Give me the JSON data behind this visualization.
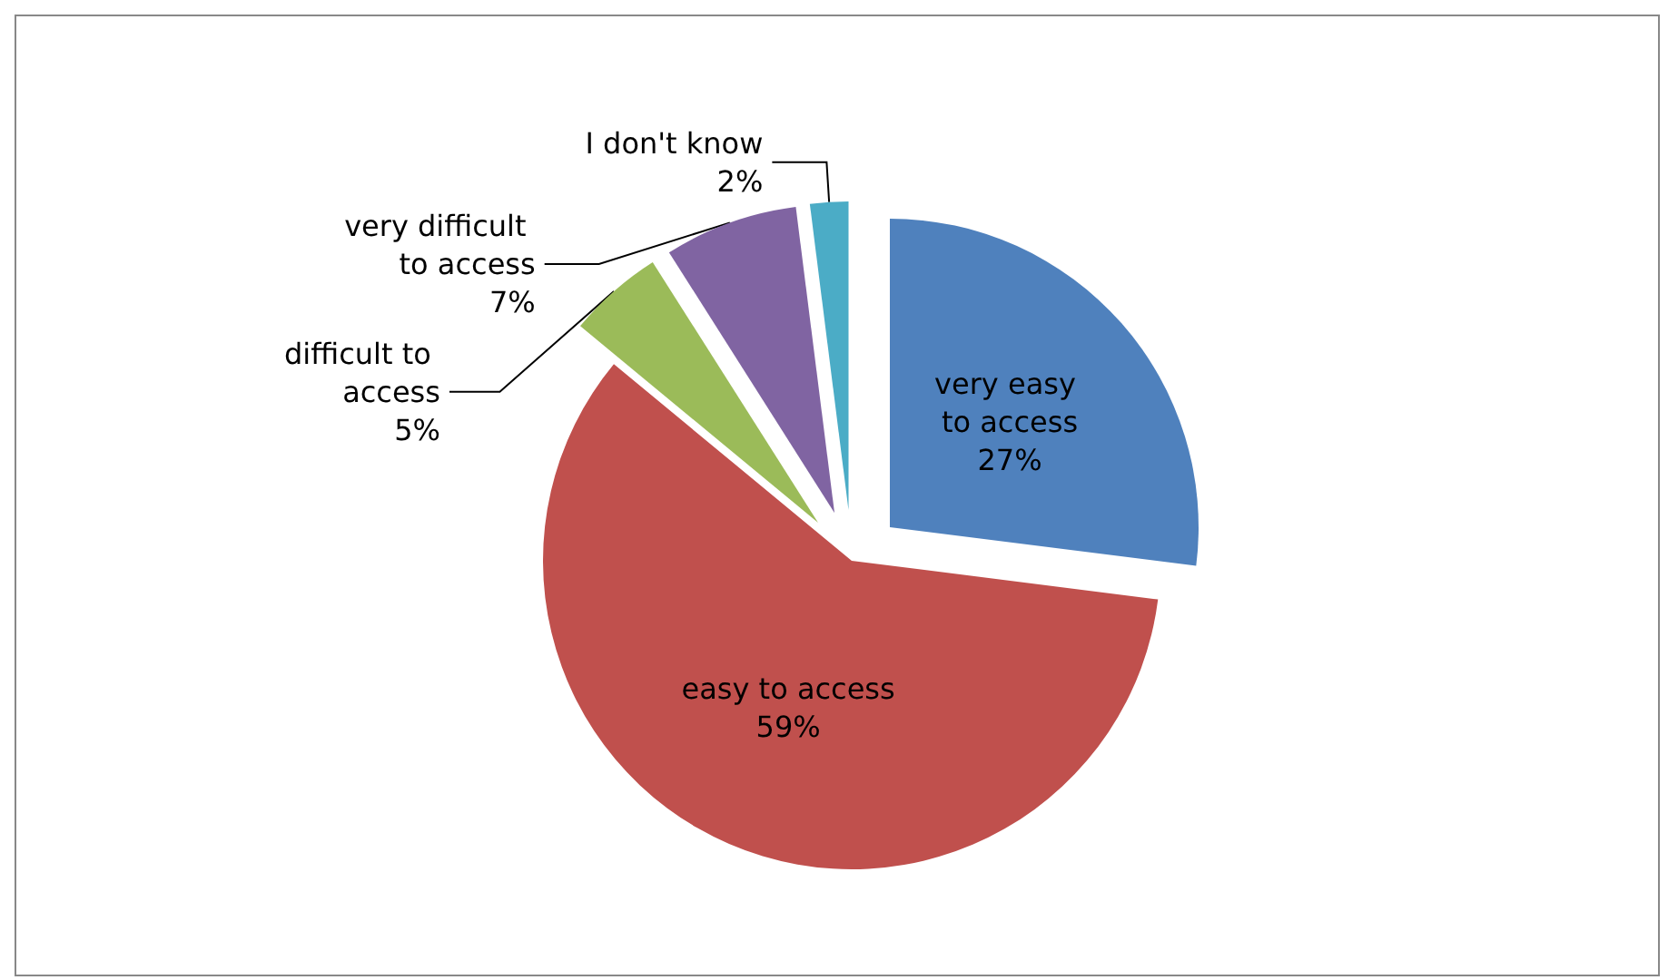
{
  "chart_data": {
    "type": "pie",
    "categories": [
      "very easy to access",
      "easy to access",
      "difficult to access",
      "very difficult to access",
      "I don't know"
    ],
    "values": [
      27,
      59,
      5,
      7,
      2
    ],
    "colors": [
      "#4f81bd",
      "#c0504d",
      "#9bbb59",
      "#8064a2",
      "#4bacc6"
    ],
    "value_labels": [
      "27%",
      "59%",
      "5%",
      "7%",
      "2%"
    ]
  }
}
